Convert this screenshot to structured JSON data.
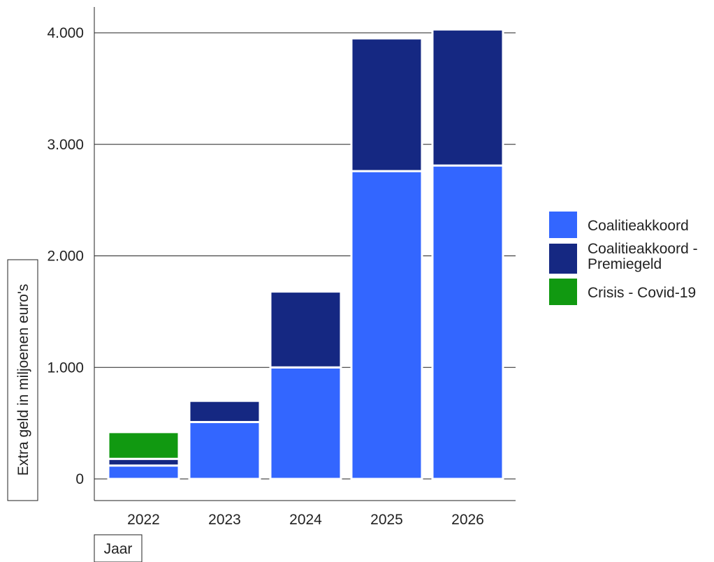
{
  "chart_data": {
    "type": "bar",
    "stacked": true,
    "categories": [
      "2022",
      "2023",
      "2024",
      "2025",
      "2026"
    ],
    "series": [
      {
        "name": "Coalitieakkoord",
        "values": [
          120,
          510,
          1000,
          2760,
          2810
        ],
        "color": "#3366ff"
      },
      {
        "name": "Coalitieakkoord - Premiegeld",
        "values": [
          60,
          190,
          680,
          1190,
          1220
        ],
        "color": "#152882"
      },
      {
        "name": "Crisis - Covid-19",
        "values": [
          240,
          0,
          0,
          0,
          0
        ],
        "color": "#119911"
      }
    ],
    "xlabel": "Jaar",
    "ylabel": "Extra geld in miljoenen euro's",
    "ylim": [
      0,
      4000
    ],
    "yticks": [
      0,
      1000,
      2000,
      3000,
      4000
    ],
    "ytick_labels": [
      "0",
      "1.000",
      "2.000",
      "3.000",
      "4.000"
    ],
    "grid": true,
    "legend_position": "right",
    "legend_labels": [
      [
        "Coalitieakkoord"
      ],
      [
        "Coalitieakkoord -",
        "Premiegeld"
      ],
      [
        "Crisis - Covid-19"
      ]
    ]
  }
}
